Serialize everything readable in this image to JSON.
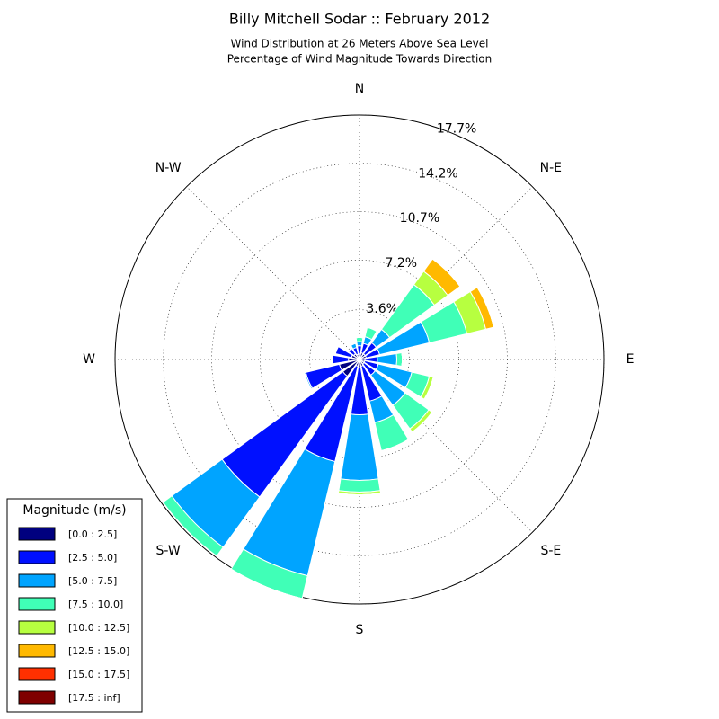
{
  "chart_data": {
    "type": "windrose",
    "title": "Billy Mitchell Sodar :: February 2012",
    "subtitle": [
      "Wind Distribution at 26 Meters Above Sea Level",
      "Percentage of Wind Magnitude Towards Direction"
    ],
    "legend_title": "Magnitude (m/s)",
    "legend_position": "lower left",
    "categories": [
      "N",
      null,
      "N-E",
      null,
      "E",
      null,
      "S-E",
      null,
      "S",
      null,
      "S-W",
      null,
      "W",
      null,
      "N-W",
      null
    ],
    "ylim": [
      0,
      17.7
    ],
    "yticks": [
      {
        "value": 3.6,
        "label": "3.6%"
      },
      {
        "value": 7.2,
        "label": "7.2%"
      },
      {
        "value": 10.7,
        "label": "10.7%"
      },
      {
        "value": 14.2,
        "label": "14.2%"
      },
      {
        "value": 17.7,
        "label": "17.7%"
      }
    ],
    "grid": true,
    "series": [
      {
        "name": "[0.0 : 2.5]",
        "color": "#00007f",
        "values": [
          0.4,
          0.5,
          0.5,
          0.5,
          0.4,
          0.4,
          0.4,
          0.5,
          0.6,
          0.5,
          1.5,
          1.5,
          0.8,
          0.6,
          0.5,
          0.4
        ]
      },
      {
        "name": "[2.5 : 5.0]",
        "color": "#0010ff",
        "values": [
          0.6,
          0.7,
          1.0,
          1.0,
          0.9,
          1.0,
          1.0,
          2.6,
          3.4,
          7.1,
          10.8,
          2.5,
          1.2,
          1.2,
          0.5,
          0.5
        ]
      },
      {
        "name": "[5.0 : 7.5]",
        "color": "#00a4ff",
        "values": [
          0.3,
          0.5,
          1.2,
          3.7,
          1.4,
          2.5,
          2.7,
          1.6,
          4.75,
          8.5,
          4.5,
          0.1,
          0,
          0,
          0,
          0.3
        ]
      },
      {
        "name": "[7.5 : 10.0]",
        "color": "#40ffb7",
        "values": [
          0.3,
          0.7,
          4.0,
          2.8,
          0.4,
          1.3,
          2.1,
          2.1,
          0.85,
          1.7,
          0.8,
          0,
          0,
          0,
          0,
          0
        ]
      },
      {
        "name": "[10.0 : 12.5]",
        "color": "#b7ff40",
        "values": [
          0,
          0,
          1.2,
          1.4,
          0,
          0.3,
          0.3,
          0,
          0.2,
          0,
          0,
          0,
          0,
          0,
          0,
          0
        ]
      },
      {
        "name": "[12.5 : 15.0]",
        "color": "#ffb900",
        "values": [
          0,
          0,
          1.1,
          0.6,
          0,
          0,
          0,
          0,
          0,
          0,
          0,
          0,
          0,
          0,
          0,
          0
        ]
      },
      {
        "name": "[15.0 : 17.5]",
        "color": "#ff3000",
        "values": [
          0,
          0,
          0,
          0,
          0,
          0,
          0,
          0,
          0,
          0,
          0,
          0,
          0,
          0,
          0,
          0
        ]
      },
      {
        "name": "[17.5 : inf]",
        "color": "#7f0000",
        "values": [
          0,
          0,
          0,
          0,
          0,
          0,
          0,
          0,
          0,
          0,
          0,
          0,
          0,
          0,
          0,
          0
        ]
      }
    ]
  }
}
